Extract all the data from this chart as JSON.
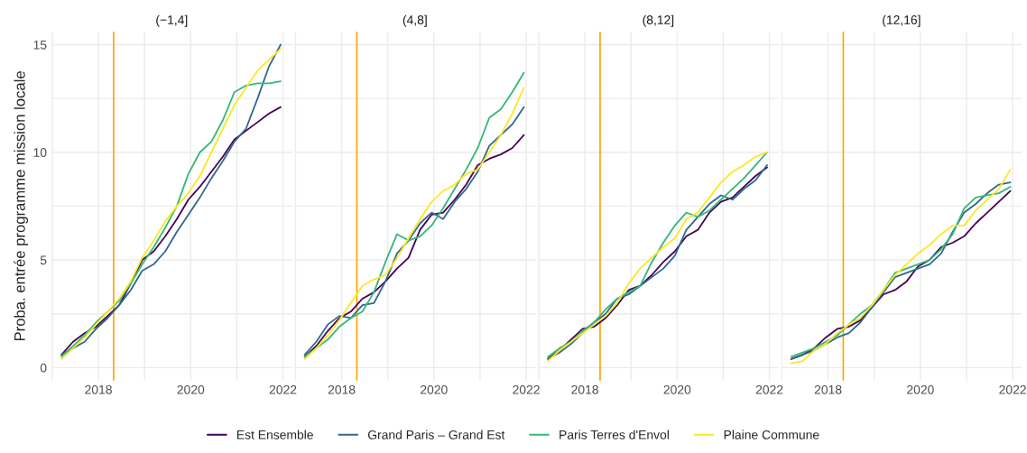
{
  "chart_data": [
    {
      "type": "line",
      "title": "(−1,4]",
      "ylabel": "Proba. entrée programme mission locale",
      "legend": "bottom",
      "grid": true,
      "x": [
        2017.2,
        2017.45,
        2017.7,
        2017.95,
        2018.2,
        2018.45,
        2018.7,
        2018.95,
        2019.2,
        2019.45,
        2019.7,
        2019.95,
        2020.2,
        2020.45,
        2020.7,
        2020.95,
        2021.2,
        2021.45,
        2021.7,
        2021.95
      ],
      "xlim": [
        2016.98,
        2022.2
      ],
      "xticks": [
        {
          "value": 2017,
          "label": null
        },
        2018,
        {
          "value": 2019,
          "label": null
        },
        2020,
        {
          "value": 2021,
          "label": null
        },
        2022
      ],
      "ylim": [
        -0.6,
        15.6
      ],
      "yticks": [
        0,
        {
          "value": 2.5,
          "label": null
        },
        5,
        {
          "value": 7.5,
          "label": null
        },
        10,
        {
          "value": 12.5,
          "label": null
        },
        15
      ],
      "ref_lines": [
        {
          "axis": "x",
          "value": 2018.33,
          "color": "#ffa500"
        }
      ],
      "series": [
        {
          "name": "Est Ensemble",
          "color": "#440154",
          "values": [
            0.6,
            1.2,
            1.6,
            1.9,
            2.4,
            2.9,
            3.9,
            5.0,
            5.4,
            6.1,
            6.9,
            7.8,
            8.4,
            9.1,
            9.8,
            10.6,
            11.0,
            11.4,
            11.8,
            12.1
          ]
        },
        {
          "name": "Grand Paris – Grand Est",
          "color": "#31688e",
          "values": [
            0.6,
            0.9,
            1.2,
            1.8,
            2.3,
            2.9,
            3.6,
            4.5,
            4.8,
            5.4,
            6.3,
            7.1,
            7.9,
            8.8,
            9.6,
            10.5,
            11.1,
            12.5,
            14.0,
            15.0
          ]
        },
        {
          "name": "Paris Terres d'Envol",
          "color": "#35b779",
          "values": [
            0.5,
            1.0,
            1.5,
            2.1,
            2.6,
            3.1,
            3.9,
            4.8,
            5.6,
            6.5,
            7.5,
            9.0,
            10.0,
            10.5,
            11.5,
            12.8,
            13.1,
            13.2,
            13.2,
            13.3
          ]
        },
        {
          "name": "Plaine Commune",
          "color": "#fde725",
          "values": [
            0.4,
            0.9,
            1.4,
            2.0,
            2.6,
            3.2,
            4.0,
            5.1,
            5.9,
            6.8,
            7.5,
            8.1,
            8.9,
            10.0,
            11.1,
            12.2,
            13.0,
            13.8,
            14.3,
            14.8
          ]
        }
      ]
    },
    {
      "type": "line",
      "title": "(4,8]",
      "grid": true,
      "tick_labels": "x",
      "x": [
        2017.2,
        2017.45,
        2017.7,
        2017.95,
        2018.2,
        2018.45,
        2018.7,
        2018.95,
        2019.2,
        2019.45,
        2019.7,
        2019.95,
        2020.2,
        2020.45,
        2020.7,
        2020.95,
        2021.2,
        2021.45,
        2021.7,
        2021.95
      ],
      "xlim": [
        2016.98,
        2022.2
      ],
      "xticks": [
        {
          "value": 2017,
          "label": null
        },
        2018,
        {
          "value": 2019,
          "label": null
        },
        2020,
        {
          "value": 2021,
          "label": null
        },
        2022
      ],
      "ylim": [
        -0.6,
        15.6
      ],
      "yticks": [
        0,
        {
          "value": 2.5,
          "label": null
        },
        5,
        {
          "value": 7.5,
          "label": null
        },
        10,
        {
          "value": 12.5,
          "label": null
        },
        15
      ],
      "ref_lines": [
        {
          "axis": "x",
          "value": 2018.33,
          "color": "#ffa500"
        }
      ],
      "series": [
        {
          "color": "#440154",
          "values": [
            0.5,
            1.0,
            1.7,
            2.3,
            2.6,
            3.2,
            3.5,
            4.0,
            4.6,
            5.1,
            6.4,
            7.1,
            7.2,
            7.8,
            8.5,
            9.4,
            9.7,
            9.9,
            10.2,
            10.8
          ]
        },
        {
          "color": "#31688e",
          "values": [
            0.6,
            1.2,
            2.0,
            2.4,
            2.3,
            2.9,
            3.0,
            4.0,
            5.3,
            5.9,
            6.7,
            7.2,
            6.9,
            7.7,
            8.3,
            9.1,
            10.3,
            10.8,
            11.3,
            12.1
          ]
        },
        {
          "color": "#35b779",
          "values": [
            0.5,
            0.9,
            1.3,
            1.9,
            2.3,
            2.6,
            3.5,
            4.9,
            6.2,
            5.9,
            6.1,
            6.6,
            7.4,
            8.3,
            9.2,
            10.2,
            11.6,
            12.0,
            12.8,
            13.7
          ]
        },
        {
          "color": "#fde725",
          "values": [
            0.4,
            0.9,
            1.5,
            2.2,
            3.0,
            3.8,
            4.1,
            4.3,
            5.1,
            6.0,
            6.9,
            7.7,
            8.2,
            8.5,
            9.0,
            9.2,
            10.0,
            10.8,
            11.8,
            13.0
          ]
        }
      ]
    },
    {
      "type": "line",
      "title": "(8,12]",
      "grid": true,
      "tick_labels": "x",
      "x": [
        2017.2,
        2017.45,
        2017.7,
        2017.95,
        2018.2,
        2018.45,
        2018.7,
        2018.95,
        2019.2,
        2019.45,
        2019.7,
        2019.95,
        2020.2,
        2020.45,
        2020.7,
        2020.95,
        2021.2,
        2021.45,
        2021.7,
        2021.95
      ],
      "xlim": [
        2016.98,
        2022.2
      ],
      "xticks": [
        {
          "value": 2017,
          "label": null
        },
        2018,
        {
          "value": 2019,
          "label": null
        },
        2020,
        {
          "value": 2021,
          "label": null
        },
        2022
      ],
      "ylim": [
        -0.6,
        15.6
      ],
      "yticks": [
        0,
        {
          "value": 2.5,
          "label": null
        },
        5,
        {
          "value": 7.5,
          "label": null
        },
        10,
        {
          "value": 12.5,
          "label": null
        },
        15
      ],
      "ref_lines": [
        {
          "axis": "x",
          "value": 2018.33,
          "color": "#ffa500"
        }
      ],
      "series": [
        {
          "color": "#440154",
          "values": [
            0.4,
            0.8,
            1.3,
            1.8,
            1.9,
            2.3,
            2.9,
            3.6,
            3.8,
            4.3,
            4.9,
            5.4,
            6.1,
            6.4,
            7.2,
            7.7,
            7.9,
            8.4,
            8.9,
            9.3
          ]
        },
        {
          "color": "#31688e",
          "values": [
            0.4,
            0.7,
            1.1,
            1.6,
            2.1,
            2.5,
            3.2,
            3.4,
            3.8,
            4.2,
            4.6,
            5.2,
            6.4,
            7.0,
            7.6,
            8.0,
            7.8,
            8.3,
            8.7,
            9.4
          ]
        },
        {
          "color": "#35b779",
          "values": [
            0.5,
            0.9,
            1.2,
            1.7,
            2.1,
            2.7,
            3.2,
            3.5,
            3.8,
            4.9,
            5.8,
            6.6,
            7.2,
            7.0,
            7.3,
            7.8,
            8.3,
            8.8,
            9.4,
            10.0
          ]
        },
        {
          "color": "#fde725",
          "values": [
            0.3,
            0.8,
            1.2,
            1.6,
            2.0,
            2.4,
            3.0,
            3.9,
            4.6,
            5.1,
            5.6,
            6.0,
            6.9,
            7.2,
            7.9,
            8.6,
            9.1,
            9.4,
            9.8,
            10.0
          ]
        }
      ]
    },
    {
      "type": "line",
      "title": "(12,16]",
      "grid": true,
      "tick_labels": "x",
      "x": [
        2017.2,
        2017.45,
        2017.7,
        2017.95,
        2018.2,
        2018.45,
        2018.7,
        2018.95,
        2019.2,
        2019.45,
        2019.7,
        2019.95,
        2020.2,
        2020.45,
        2020.7,
        2020.95,
        2021.2,
        2021.45,
        2021.7,
        2021.95
      ],
      "xlim": [
        2016.98,
        2022.2
      ],
      "xticks": [
        {
          "value": 2017,
          "label": null
        },
        2018,
        {
          "value": 2019,
          "label": null
        },
        2020,
        {
          "value": 2021,
          "label": null
        },
        2022
      ],
      "ylim": [
        -0.6,
        15.6
      ],
      "yticks": [
        0,
        {
          "value": 2.5,
          "label": null
        },
        5,
        {
          "value": 7.5,
          "label": null
        },
        10,
        {
          "value": 12.5,
          "label": null
        },
        15
      ],
      "ref_lines": [
        {
          "axis": "x",
          "value": 2018.33,
          "color": "#ffa500"
        }
      ],
      "series": [
        {
          "color": "#440154",
          "values": [
            0.4,
            0.6,
            0.9,
            1.4,
            1.8,
            1.9,
            2.2,
            2.8,
            3.4,
            3.6,
            4.0,
            4.7,
            5.0,
            5.6,
            5.8,
            6.1,
            6.7,
            7.2,
            7.7,
            8.2
          ]
        },
        {
          "color": "#31688e",
          "values": [
            0.4,
            0.6,
            0.8,
            1.1,
            1.4,
            1.6,
            2.1,
            2.8,
            3.5,
            4.2,
            4.4,
            4.6,
            4.8,
            5.3,
            6.3,
            7.2,
            7.6,
            8.1,
            8.5,
            8.6
          ]
        },
        {
          "color": "#35b779",
          "values": [
            0.5,
            0.7,
            0.9,
            1.2,
            1.5,
            2.0,
            2.5,
            2.9,
            3.6,
            4.4,
            4.6,
            4.8,
            5.0,
            5.5,
            6.2,
            7.4,
            7.9,
            8.0,
            8.1,
            8.4
          ]
        },
        {
          "color": "#fde725",
          "values": [
            0.2,
            0.3,
            0.8,
            1.1,
            1.6,
            2.0,
            2.3,
            2.9,
            3.6,
            4.3,
            4.8,
            5.3,
            5.7,
            6.2,
            6.6,
            6.6,
            7.3,
            7.8,
            8.3,
            9.2
          ]
        }
      ]
    }
  ]
}
